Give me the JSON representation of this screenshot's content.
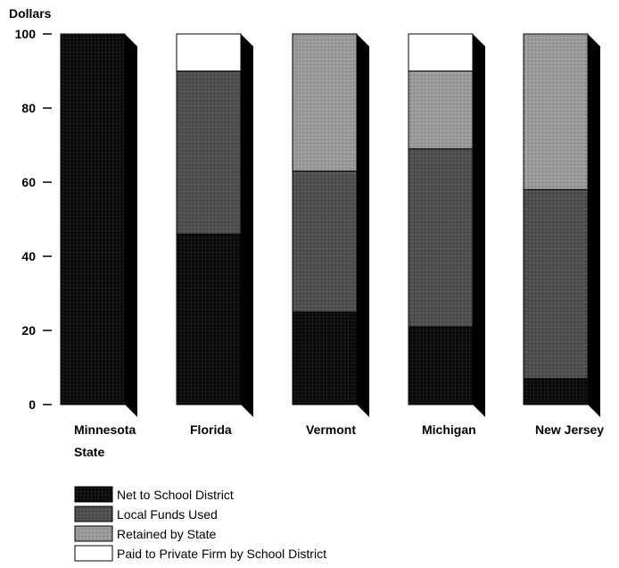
{
  "chart_data": {
    "type": "bar",
    "stacked": true,
    "ylabel": "Dollars",
    "ylim": [
      0,
      100
    ],
    "yticks": [
      0,
      20,
      40,
      60,
      80,
      100
    ],
    "categories": [
      [
        "Minnesota",
        "State"
      ],
      [
        "Florida"
      ],
      [
        "Vermont"
      ],
      [
        "Michigan"
      ],
      [
        "New Jersey"
      ]
    ],
    "series": [
      {
        "name": "Net to School District",
        "color": "#0c0c0c",
        "values": [
          100,
          46,
          25,
          21,
          7
        ]
      },
      {
        "name": "Local Funds Used",
        "color": "#4f4f4f",
        "values": [
          0,
          44,
          38,
          48,
          51
        ]
      },
      {
        "name": "Retained by State",
        "color": "#9a9a9a",
        "values": [
          0,
          0,
          37,
          21,
          42
        ]
      },
      {
        "name": "Paid to Private Firm by School District",
        "color": "#ffffff",
        "values": [
          0,
          10,
          0,
          10,
          0
        ]
      }
    ],
    "legend_position": "bottom-left"
  }
}
